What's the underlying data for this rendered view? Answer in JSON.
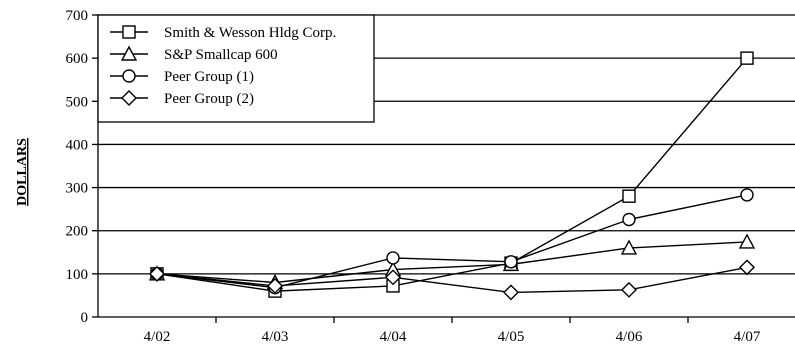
{
  "chart_data": {
    "type": "line",
    "ylabel": "DOLLARS",
    "ylim": [
      0,
      700
    ],
    "yticks": [
      0,
      100,
      200,
      300,
      400,
      500,
      600,
      700
    ],
    "grid": "horizontal",
    "legend_position": "top-left",
    "categories": [
      "4/02",
      "4/03",
      "4/04",
      "4/05",
      "4/06",
      "4/07"
    ],
    "series": [
      {
        "name": "Smith & Wesson Hldg Corp.",
        "marker": "square",
        "values": [
          100,
          60,
          72,
          125,
          280,
          600
        ]
      },
      {
        "name": "S&P Smallcap 600",
        "marker": "triangle",
        "values": [
          100,
          80,
          110,
          122,
          160,
          174
        ]
      },
      {
        "name": "Peer Group (1)",
        "marker": "circle",
        "values": [
          100,
          68,
          137,
          128,
          226,
          283
        ]
      },
      {
        "name": "Peer Group (2)",
        "marker": "diamond",
        "values": [
          100,
          72,
          92,
          57,
          63,
          115
        ]
      }
    ]
  }
}
